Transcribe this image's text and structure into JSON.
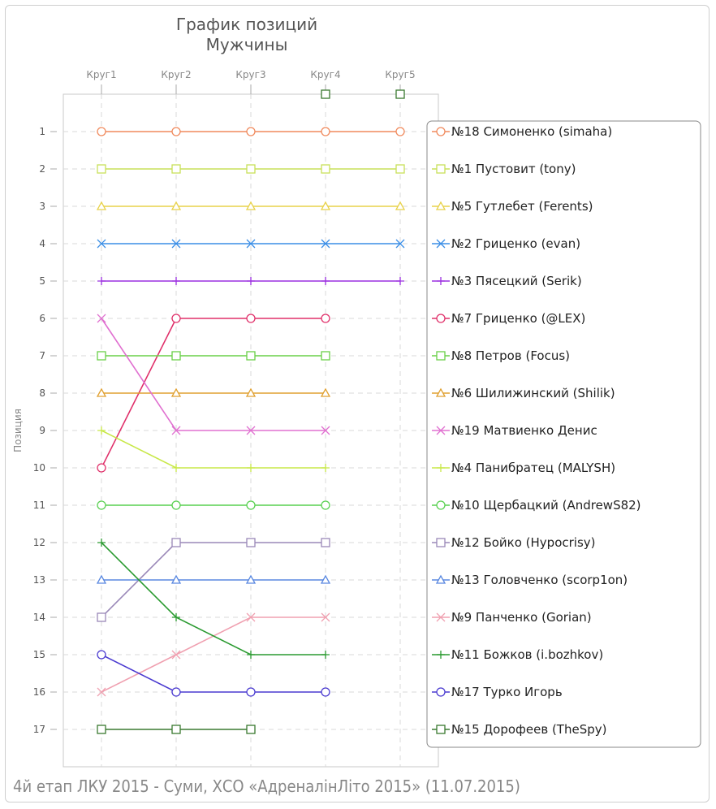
{
  "chart_data": {
    "type": "line",
    "title": "График позиций",
    "subtitle": "Мужчины",
    "ylabel": "Позиция",
    "caption": "4й етап ЛКУ 2015 - Суми, ХСО «АдреналінЛіто 2015» (11.07.2015)",
    "rounds": [
      "Круг1",
      "Круг2",
      "Круг3",
      "Круг4",
      "Круг5"
    ],
    "positions": [
      "1",
      "2",
      "3",
      "4",
      "5",
      "6",
      "7",
      "8",
      "9",
      "10",
      "11",
      "12",
      "13",
      "14",
      "15",
      "16",
      "17"
    ],
    "y_reversed": true,
    "grid": true,
    "legend_position": "right",
    "series": [
      {
        "name": "№18 Симоненко (simaha)",
        "color": "#f08a5d",
        "marker": "circle",
        "values": [
          1,
          1,
          1,
          1,
          1
        ]
      },
      {
        "name": "№1 Пустовит (tony)",
        "color": "#c8e05a",
        "marker": "square",
        "values": [
          2,
          2,
          2,
          2,
          2
        ]
      },
      {
        "name": "№5 Гутлебет (Ferents)",
        "color": "#e8d24a",
        "marker": "triangle",
        "values": [
          3,
          3,
          3,
          3,
          3
        ]
      },
      {
        "name": "№2 Гриценко (evan)",
        "color": "#3a8ee6",
        "marker": "x",
        "values": [
          4,
          4,
          4,
          4,
          4
        ]
      },
      {
        "name": "№3 Пясецкий (Serik)",
        "color": "#9b30e0",
        "marker": "plus",
        "values": [
          5,
          5,
          5,
          5,
          5
        ]
      },
      {
        "name": "№7 Гриценко (@LEX)",
        "color": "#e0306a",
        "marker": "circle",
        "values": [
          10,
          6,
          6,
          6,
          null
        ]
      },
      {
        "name": "№8 Петров (Focus)",
        "color": "#6ad048",
        "marker": "square",
        "values": [
          7,
          7,
          7,
          7,
          null
        ]
      },
      {
        "name": "№6 Шилижинский (Shilik)",
        "color": "#e0a030",
        "marker": "triangle",
        "values": [
          8,
          8,
          8,
          8,
          null
        ]
      },
      {
        "name": "№19 Матвиенко Денис",
        "color": "#e070d0",
        "marker": "x",
        "values": [
          6,
          9,
          9,
          9,
          null
        ]
      },
      {
        "name": "№4 Панибратец (MALYSH)",
        "color": "#c8e848",
        "marker": "plus",
        "values": [
          9,
          10,
          10,
          10,
          null
        ]
      },
      {
        "name": "№10 Щербацкий (AndrewS82)",
        "color": "#58d050",
        "marker": "circle",
        "values": [
          11,
          11,
          11,
          11,
          null
        ]
      },
      {
        "name": "№12 Бойко (Hypocrisy)",
        "color": "#9a88b8",
        "marker": "square",
        "values": [
          14,
          12,
          12,
          12,
          null
        ]
      },
      {
        "name": "№13 Головченко (scorp1on)",
        "color": "#5a88e0",
        "marker": "triangle",
        "values": [
          13,
          13,
          13,
          13,
          null
        ]
      },
      {
        "name": "№9 Панченко (Gorian)",
        "color": "#f0a0b0",
        "marker": "x",
        "values": [
          16,
          15,
          14,
          14,
          null
        ]
      },
      {
        "name": "№11 Божков (i.bozhkov)",
        "color": "#2a9a30",
        "marker": "plus",
        "values": [
          12,
          14,
          15,
          15,
          null
        ]
      },
      {
        "name": "№17 Турко Игорь",
        "color": "#4a3ad0",
        "marker": "circle",
        "values": [
          15,
          16,
          16,
          16,
          null
        ]
      },
      {
        "name": "№15 Дорофеев (TheSpy)",
        "color": "#3a7a30",
        "marker": "square",
        "values": [
          17,
          17,
          17,
          0,
          0
        ]
      }
    ]
  }
}
